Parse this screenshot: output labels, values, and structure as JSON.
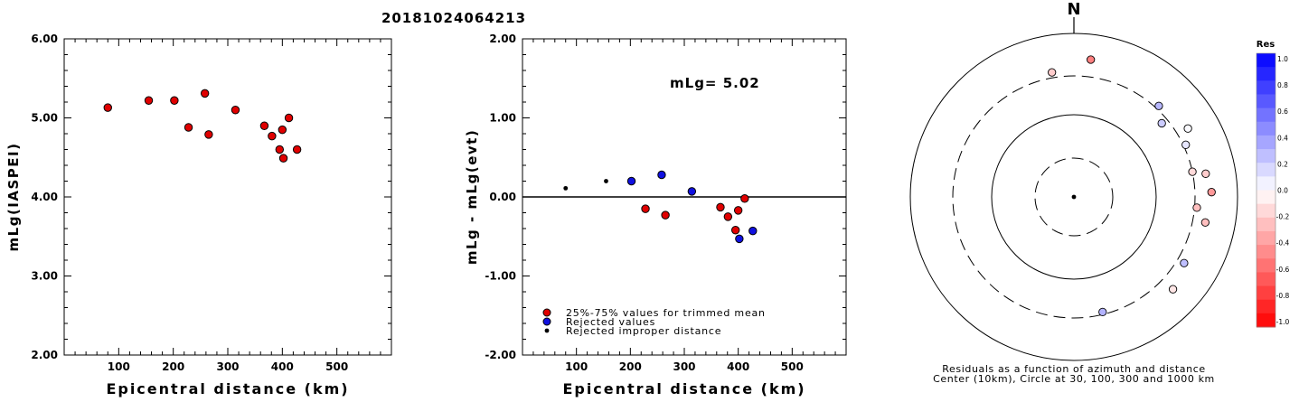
{
  "title": "20181024064213",
  "chart_data": [
    {
      "type": "scatter",
      "xlabel": "Epicentral distance (km)",
      "ylabel": "mLg(IASPEI)",
      "xlim": [
        0,
        600
      ],
      "ylim": [
        2.0,
        6.0
      ],
      "x_ticks": [
        "100",
        "200",
        "300",
        "400",
        "500"
      ],
      "y_ticks": [
        "2.00",
        "3.00",
        "4.00",
        "5.00",
        "6.00"
      ],
      "grid": false,
      "series": [
        {
          "color": "#e00000",
          "points": [
            [
              80,
              5.13
            ],
            [
              155,
              5.22
            ],
            [
              202,
              5.22
            ],
            [
              228,
              4.88
            ],
            [
              258,
              5.31
            ],
            [
              265,
              4.79
            ],
            [
              314,
              5.1
            ],
            [
              367,
              4.9
            ],
            [
              381,
              4.77
            ],
            [
              395,
              4.6
            ],
            [
              400,
              4.85
            ],
            [
              402,
              4.49
            ],
            [
              412,
              5.0
            ],
            [
              427,
              4.6
            ]
          ]
        }
      ]
    },
    {
      "type": "scatter",
      "xlabel": "Epicentral distance (km)",
      "ylabel": "mLg - mLg(evt)",
      "xlim": [
        0,
        600
      ],
      "ylim": [
        -2.0,
        2.0
      ],
      "x_ticks": [
        "100",
        "200",
        "300",
        "400",
        "500"
      ],
      "y_ticks": [
        "-2.00",
        "-1.00",
        "0.00",
        "1.00",
        "2.00"
      ],
      "grid": false,
      "annotation": "mLg= 5.02",
      "legend_position": "bottom-left",
      "series": [
        {
          "name": "25%-75% values for trimmed mean",
          "color": "#e00000",
          "points": [
            [
              228,
              -0.15
            ],
            [
              265,
              -0.23
            ],
            [
              367,
              -0.13
            ],
            [
              381,
              -0.25
            ],
            [
              395,
              -0.42
            ],
            [
              400,
              -0.17
            ],
            [
              412,
              -0.02
            ]
          ]
        },
        {
          "name": "Rejected values",
          "color": "#1010e0",
          "points": [
            [
              202,
              0.2
            ],
            [
              258,
              0.28
            ],
            [
              314,
              0.07
            ],
            [
              402,
              -0.53
            ],
            [
              427,
              -0.43
            ]
          ]
        },
        {
          "name": "Rejected improper distance",
          "color": "#000000",
          "points": [
            [
              80,
              0.11
            ],
            [
              155,
              0.2
            ]
          ]
        }
      ]
    },
    {
      "type": "scatter",
      "subtype": "polar",
      "north_label": "N",
      "caption_line1": "Residuals as a function of azimuth and distance",
      "caption_line2": "Center (10km), Circle at 30, 100, 300 and 1000 km",
      "colorbar_title": "Res",
      "colorbar_range": [
        -1.0,
        1.0
      ],
      "colorbar_ticks": [
        "1.0",
        "0.8",
        "0.6",
        "0.4",
        "0.2",
        "0.0",
        "-0.2",
        "-0.4",
        "-0.6",
        "-0.8",
        "-1.0"
      ],
      "rings_km": [
        30,
        100,
        300,
        1000
      ],
      "stations": [
        {
          "az": 350,
          "dist": 350,
          "res": -0.2
        },
        {
          "az": 7,
          "dist": 490,
          "res": -0.5
        },
        {
          "az": 43,
          "dist": 330,
          "res": 0.28
        },
        {
          "az": 50,
          "dist": 250,
          "res": 0.2
        },
        {
          "az": 59,
          "dist": 420,
          "res": 0.02
        },
        {
          "az": 65,
          "dist": 320,
          "res": 0.1
        },
        {
          "az": 78,
          "dist": 300,
          "res": -0.15
        },
        {
          "az": 80,
          "dist": 430,
          "res": -0.2
        },
        {
          "az": 88,
          "dist": 480,
          "res": -0.4
        },
        {
          "az": 95,
          "dist": 320,
          "res": -0.25
        },
        {
          "az": 101,
          "dist": 430,
          "res": -0.25
        },
        {
          "az": 121,
          "dist": 370,
          "res": 0.25
        },
        {
          "az": 133,
          "dist": 450,
          "res": -0.1
        },
        {
          "az": 166,
          "dist": 280,
          "res": 0.3
        }
      ]
    }
  ]
}
